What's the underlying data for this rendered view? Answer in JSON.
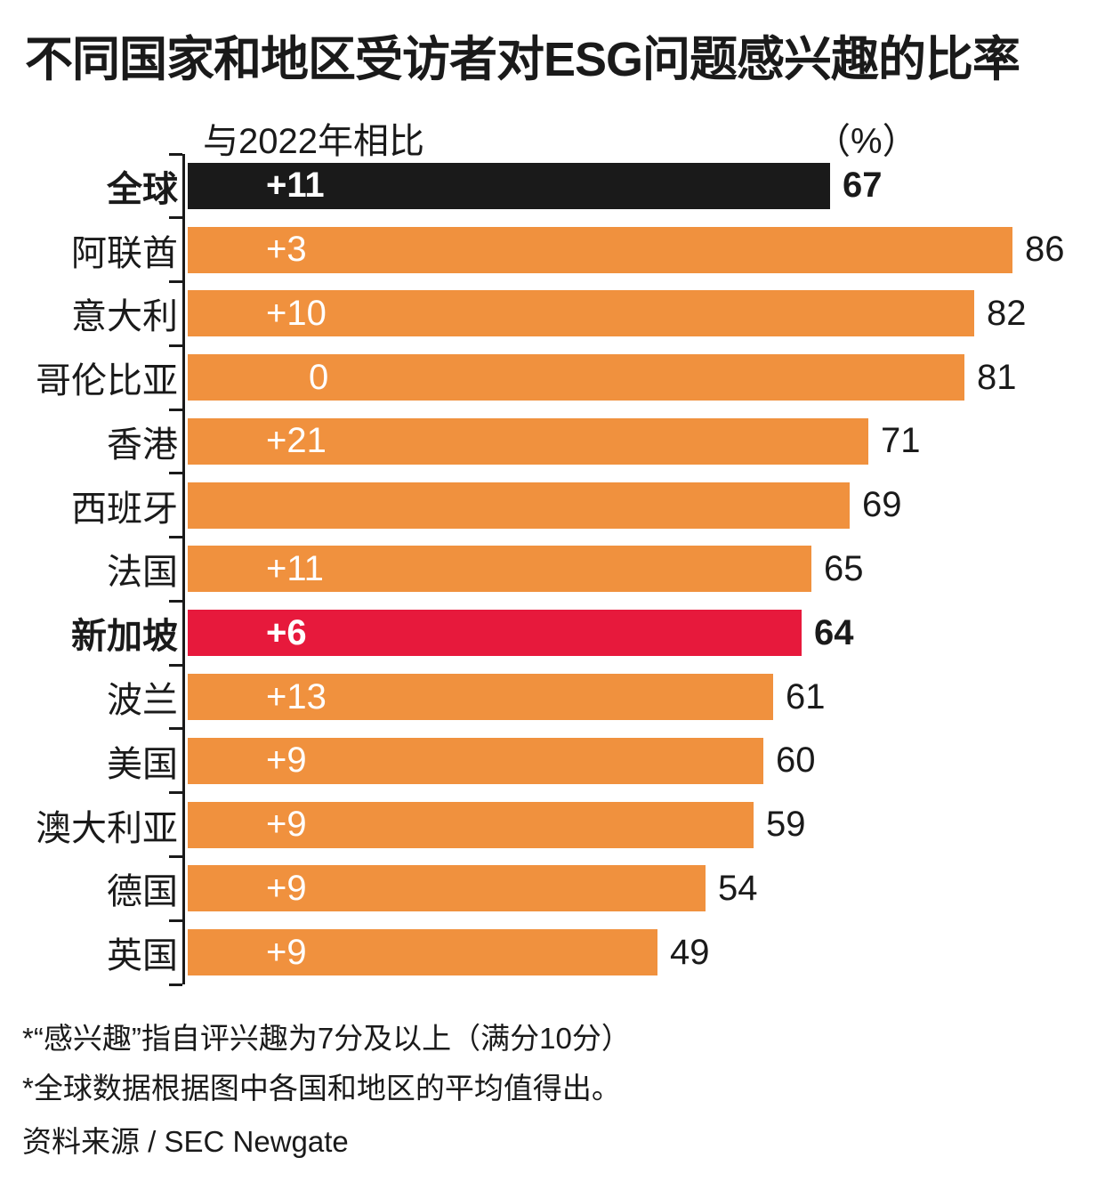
{
  "title": "不同国家和地区受访者对ESG问题感兴趣的比率",
  "header": {
    "compare_label": "与2022年相比",
    "unit_label": "（%）"
  },
  "colors": {
    "orange": "#f0913e",
    "black": "#1a1a1a",
    "red": "#e7193c",
    "bar_text": "#ffffff"
  },
  "chart_data": {
    "type": "bar",
    "orientation": "horizontal",
    "title": "不同国家和地区受访者对ESG问题感兴趣的比率",
    "xlabel": "（%）",
    "xlim": [
      0,
      93
    ],
    "grid": false,
    "legend": "none",
    "categories": [
      "全球",
      "阿联酋",
      "意大利",
      "哥伦比亚",
      "香港",
      "西班牙",
      "法国",
      "新加坡",
      "波兰",
      "美国",
      "澳大利亚",
      "德国",
      "英国"
    ],
    "values": [
      67,
      86,
      82,
      81,
      71,
      69,
      65,
      64,
      61,
      60,
      59,
      54,
      49
    ],
    "changes_vs_2022": [
      "+11",
      "+3",
      "+10",
      "0",
      "+21",
      "",
      "+11",
      "+6",
      "+13",
      "+9",
      "+9",
      "+9",
      "+9"
    ],
    "rows": [
      {
        "label": "全球",
        "change": "+11",
        "value": 67,
        "color": "#1a1a1a",
        "emphasis": true
      },
      {
        "label": "阿联酋",
        "change": "+3",
        "value": 86,
        "color": "#f0913e",
        "emphasis": false
      },
      {
        "label": "意大利",
        "change": "+10",
        "value": 82,
        "color": "#f0913e",
        "emphasis": false
      },
      {
        "label": "哥伦比亚",
        "change": "0",
        "value": 81,
        "color": "#f0913e",
        "emphasis": false
      },
      {
        "label": "香港",
        "change": "+21",
        "value": 71,
        "color": "#f0913e",
        "emphasis": false
      },
      {
        "label": "西班牙",
        "change": "",
        "value": 69,
        "color": "#f0913e",
        "emphasis": false
      },
      {
        "label": "法国",
        "change": "+11",
        "value": 65,
        "color": "#f0913e",
        "emphasis": false
      },
      {
        "label": "新加坡",
        "change": "+6",
        "value": 64,
        "color": "#e7193c",
        "emphasis": true
      },
      {
        "label": "波兰",
        "change": "+13",
        "value": 61,
        "color": "#f0913e",
        "emphasis": false
      },
      {
        "label": "美国",
        "change": "+9",
        "value": 60,
        "color": "#f0913e",
        "emphasis": false
      },
      {
        "label": "澳大利亚",
        "change": "+9",
        "value": 59,
        "color": "#f0913e",
        "emphasis": false
      },
      {
        "label": "德国",
        "change": "+9",
        "value": 54,
        "color": "#f0913e",
        "emphasis": false
      },
      {
        "label": "英国",
        "change": "+9",
        "value": 49,
        "color": "#f0913e",
        "emphasis": false
      }
    ]
  },
  "footnotes": {
    "line1": "*“感兴趣”指自评兴趣为7分及以上（满分10分）",
    "line2": "*全球数据根据图中各国和地区的平均值得出。"
  },
  "source": "资料来源 / SEC Newgate"
}
